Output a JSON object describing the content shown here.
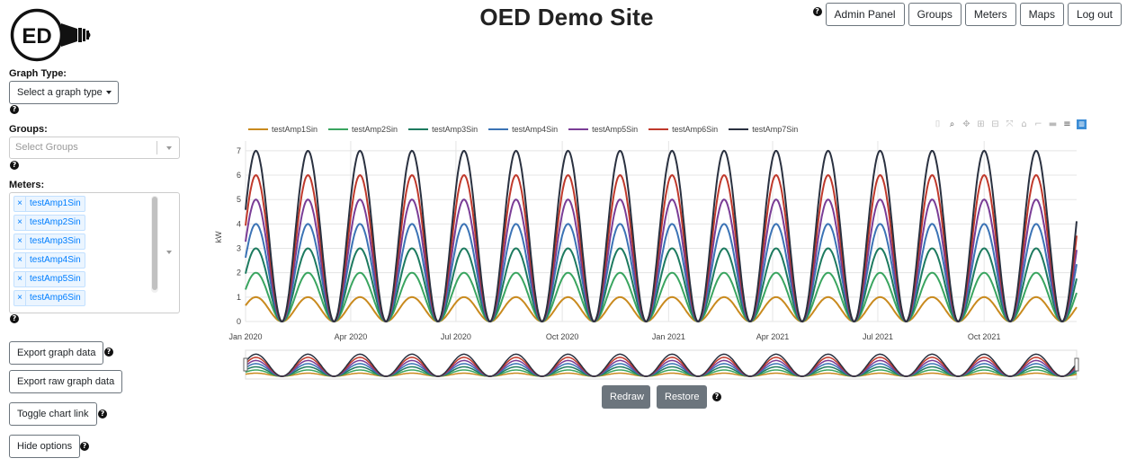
{
  "header": {
    "title": "OED Demo Site",
    "logo_text": "ED",
    "nav": [
      "Admin Panel",
      "Groups",
      "Meters",
      "Maps",
      "Log out"
    ]
  },
  "sidebar": {
    "graph_type_label": "Graph Type:",
    "graph_type_button": "Select a graph type",
    "groups_label": "Groups:",
    "groups_placeholder": "Select Groups",
    "meters_label": "Meters:",
    "selected_meters": [
      "testAmp1Sin",
      "testAmp2Sin",
      "testAmp3Sin",
      "testAmp4Sin",
      "testAmp5Sin",
      "testAmp6Sin"
    ],
    "buttons": {
      "export_graph": "Export graph data",
      "export_raw": "Export raw graph data",
      "toggle_link": "Toggle chart link",
      "hide_options": "Hide options"
    }
  },
  "controls": {
    "redraw": "Redraw",
    "restore": "Restore"
  },
  "help_glyph": "?",
  "chart_data": {
    "type": "line",
    "ylabel": "kW",
    "ylim": [
      0,
      7.4
    ],
    "yticks": [
      0,
      1,
      2,
      3,
      4,
      5,
      6,
      7
    ],
    "x_range": [
      "2020-01-01",
      "2021-12-20"
    ],
    "x_ticks": [
      {
        "date": "2020-01-01",
        "label": "Jan 2020"
      },
      {
        "date": "2020-04-01",
        "label": "Apr 2020"
      },
      {
        "date": "2020-07-01",
        "label": "Jul 2020"
      },
      {
        "date": "2020-10-01",
        "label": "Oct 2020"
      },
      {
        "date": "2021-01-01",
        "label": "Jan 2021"
      },
      {
        "date": "2021-04-01",
        "label": "Apr 2021"
      },
      {
        "date": "2021-07-01",
        "label": "Jul 2021"
      },
      {
        "date": "2021-10-01",
        "label": "Oct 2021"
      }
    ],
    "period_days": 45,
    "first_peak": "2020-01-10",
    "grid": true,
    "legend_position": "top",
    "series": [
      {
        "name": "testAmp1Sin",
        "amplitude": 1,
        "color": "#c98a1e"
      },
      {
        "name": "testAmp2Sin",
        "amplitude": 2,
        "color": "#3aa560"
      },
      {
        "name": "testAmp3Sin",
        "amplitude": 3,
        "color": "#1d7a5f"
      },
      {
        "name": "testAmp4Sin",
        "amplitude": 4,
        "color": "#3b73b5"
      },
      {
        "name": "testAmp5Sin",
        "amplitude": 5,
        "color": "#7a3d96"
      },
      {
        "name": "testAmp6Sin",
        "amplitude": 6,
        "color": "#c0392b"
      },
      {
        "name": "testAmp7Sin",
        "amplitude": 7,
        "color": "#2a3140"
      }
    ]
  }
}
